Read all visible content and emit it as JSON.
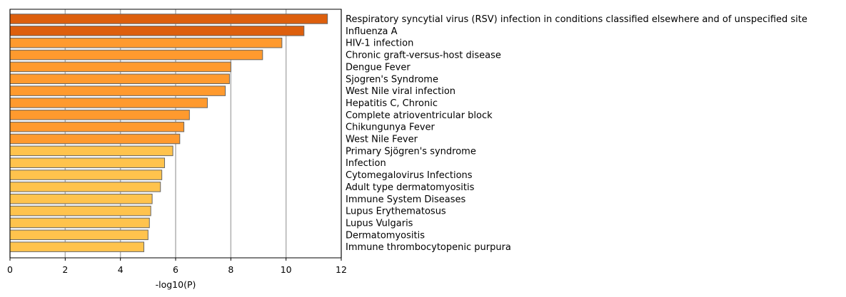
{
  "chart_data": {
    "type": "bar",
    "orientation": "horizontal",
    "xlabel": "-log10(P)",
    "ylabel": "",
    "xlim": [
      0,
      12
    ],
    "xticks": [
      0,
      2,
      4,
      6,
      8,
      10,
      12
    ],
    "grid": "vertical",
    "category_label_position": "right",
    "colors": {
      "dark": "#DD5F0D",
      "mid": "#FF9A2E",
      "light": "#FFC34D",
      "edge": "#666666",
      "grid": "#B0B0B0"
    },
    "bars": [
      {
        "label": "Respiratory syncytial virus (RSV) infection in conditions classified elsewhere and of unspecified site",
        "value": 11.5,
        "color": "#DD5F0D"
      },
      {
        "label": "Influenza A",
        "value": 10.65,
        "color": "#DD5F0D"
      },
      {
        "label": "HIV-1 infection",
        "value": 9.85,
        "color": "#FF9A2E"
      },
      {
        "label": "Chronic graft-versus-host disease",
        "value": 9.15,
        "color": "#FF9A2E"
      },
      {
        "label": "Dengue Fever",
        "value": 8.0,
        "color": "#FF9A2E"
      },
      {
        "label": "Sjogren's Syndrome",
        "value": 7.95,
        "color": "#FF9A2E"
      },
      {
        "label": "West Nile viral infection",
        "value": 7.8,
        "color": "#FF9A2E"
      },
      {
        "label": "Hepatitis C, Chronic",
        "value": 7.15,
        "color": "#FF9A2E"
      },
      {
        "label": "Complete atrioventricular block",
        "value": 6.5,
        "color": "#FF9A2E"
      },
      {
        "label": "Chikungunya Fever",
        "value": 6.3,
        "color": "#FF9A2E"
      },
      {
        "label": "West Nile Fever",
        "value": 6.15,
        "color": "#FF9A2E"
      },
      {
        "label": "Primary Sjögren's syndrome",
        "value": 5.9,
        "color": "#FFC34D"
      },
      {
        "label": "Infection",
        "value": 5.6,
        "color": "#FFC34D"
      },
      {
        "label": "Cytomegalovirus Infections",
        "value": 5.5,
        "color": "#FFC34D"
      },
      {
        "label": "Adult type dermatomyositis",
        "value": 5.45,
        "color": "#FFC34D"
      },
      {
        "label": "Immune System Diseases",
        "value": 5.15,
        "color": "#FFC34D"
      },
      {
        "label": "Lupus Erythematosus",
        "value": 5.1,
        "color": "#FFC34D"
      },
      {
        "label": "Lupus Vulgaris",
        "value": 5.05,
        "color": "#FFC34D"
      },
      {
        "label": "Dermatomyositis",
        "value": 5.0,
        "color": "#FFC34D"
      },
      {
        "label": "Immune thrombocytopenic purpura",
        "value": 4.85,
        "color": "#FFC34D"
      }
    ]
  }
}
